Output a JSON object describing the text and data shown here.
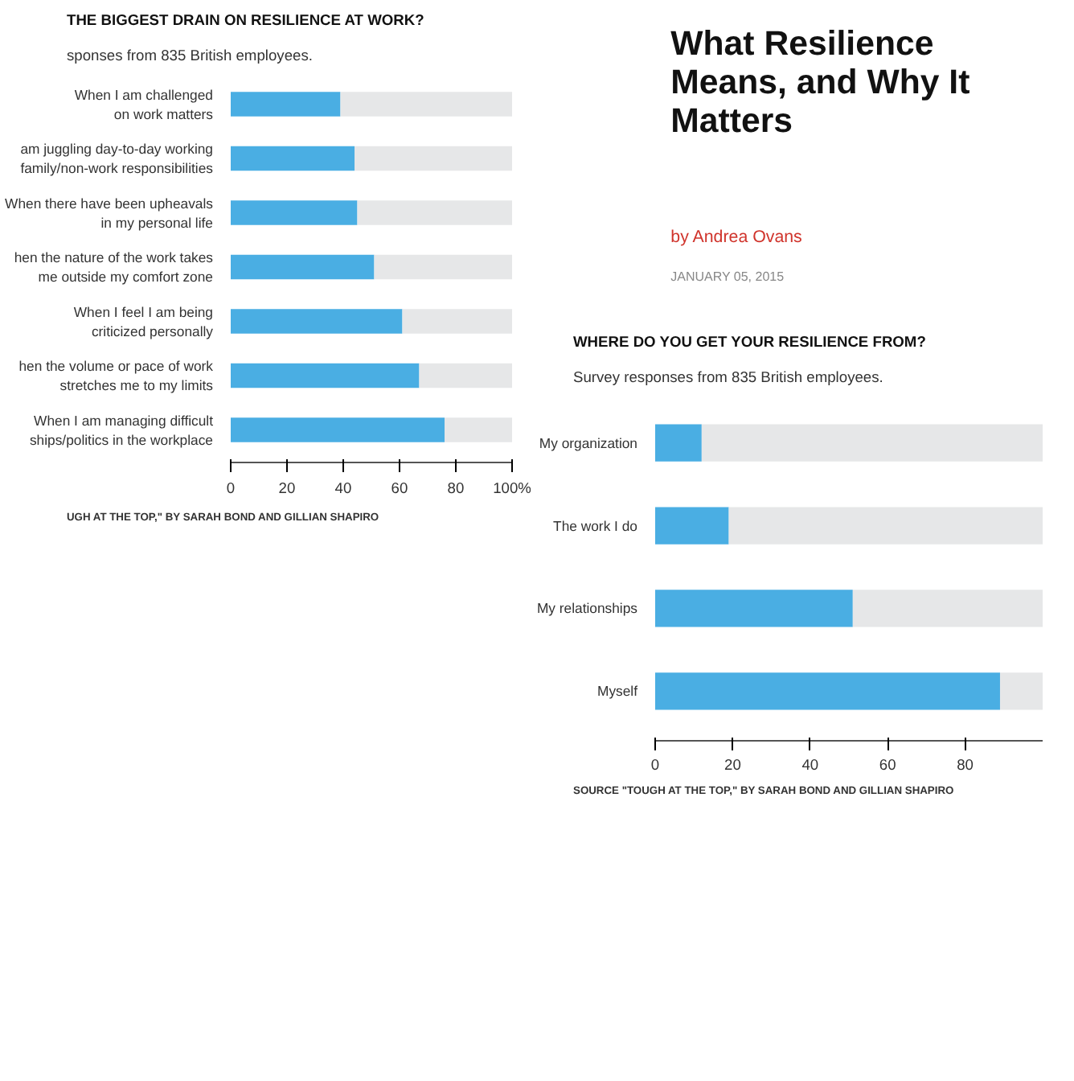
{
  "chart_data": [
    {
      "type": "bar",
      "orientation": "horizontal",
      "stacked": true,
      "title": "THE BIGGEST DRAIN ON RESILIENCE AT WORK?",
      "subtitle": "sponses from 835 British employees.",
      "categories": [
        "When I am challenged\non work matters",
        "am juggling day-to-day working\nfamily/non-work responsibilities",
        "When there have been upheavals\nin my personal life",
        "hen the nature of the work takes\nme outside my comfort zone",
        "When I feel I am being\ncriticized personally",
        "hen the volume or pace of work\nstretches me to my limits",
        "When I am managing difficult\nships/politics in the workplace"
      ],
      "series": [
        {
          "color": "#4aaee3",
          "values": [
            39,
            44,
            45,
            51,
            61,
            67,
            76
          ]
        },
        {
          "color": "#e6e7e8",
          "values": [
            61,
            56,
            55,
            49,
            39,
            33,
            24
          ]
        }
      ],
      "xlim": [
        0,
        100
      ],
      "xticks": [
        0,
        20,
        40,
        60,
        80,
        {
          "value": 100,
          "label": "100%"
        }
      ],
      "annotations": [
        "UGH AT THE TOP,\" BY SARAH BOND AND GILLIAN SHAPIRO"
      ]
    },
    {
      "type": "other",
      "title": "What Resilience Means, and Why It Matters",
      "subtitle": "by Andrea Ovans",
      "annotations": [
        "JANUARY 05, 2015"
      ]
    },
    {
      "type": "bar",
      "orientation": "horizontal",
      "stacked": true,
      "title": "WHERE DO YOU GET YOUR RESILIENCE FROM?",
      "subtitle": "Survey responses from 835 British employees.",
      "categories": [
        "My organization",
        "The work I do",
        "My relationships",
        "Myself"
      ],
      "series": [
        {
          "color": "#4aaee3",
          "values": [
            12,
            19,
            51,
            89
          ]
        },
        {
          "color": "#e6e7e8",
          "values": [
            88,
            81,
            49,
            11
          ]
        }
      ],
      "xlim": [
        0,
        100
      ],
      "xticks": [
        0,
        20,
        40,
        60,
        80
      ],
      "annotations": [
        "SOURCE \"TOUGH AT THE TOP,\" BY SARAH BOND AND GILLIAN SHAPIRO"
      ]
    }
  ]
}
